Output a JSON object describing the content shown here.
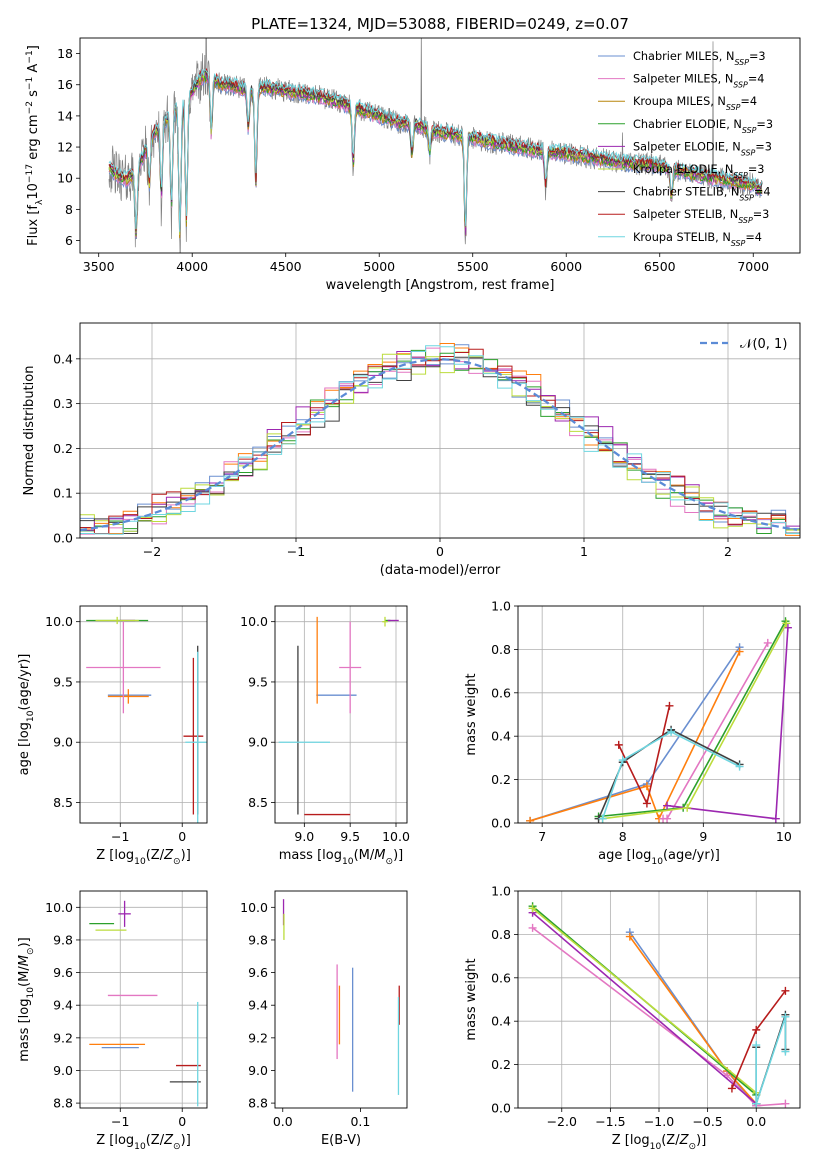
{
  "figure_title": "PLATE=1324, MJD=53088, FIBERID=0249, z=0.07",
  "chart_data": [
    {
      "id": "spectrum",
      "type": "line",
      "xlabel": "wavelength [Angstrom, rest frame]",
      "ylabel": "Flux [f_λ10^-17 erg cm^-2 s^-1 A^-1]",
      "xlim": [
        3400,
        7250
      ],
      "ylim": [
        5.2,
        19
      ],
      "xticks": [
        3500,
        4000,
        4500,
        5000,
        5500,
        6000,
        6500,
        7000
      ],
      "yticks": [
        6,
        8,
        10,
        12,
        14,
        16,
        18
      ],
      "grid": false,
      "legend_position": "top-right",
      "legend": [
        {
          "label": "Chabrier MILES, N_SSP=3",
          "color": "#6a8fd0"
        },
        {
          "label": "Salpeter MILES, N_SSP=4",
          "color": "#e377c2"
        },
        {
          "label": "Kroupa MILES, N_SSP=4",
          "color": "#b8860b"
        },
        {
          "label": "Chabrier ELODIE, N_SSP=3",
          "color": "#2ca02c"
        },
        {
          "label": "Salpeter ELODIE, N_SSP=3",
          "color": "#9c27b0"
        },
        {
          "label": "Kroupa ELODIE, N_SSP=3",
          "color": "#bcdc3c"
        },
        {
          "label": "Chabrier STELIB, N_SSP=4",
          "color": "#404040"
        },
        {
          "label": "Salpeter STELIB, N_SSP=3",
          "color": "#b71c1c"
        },
        {
          "label": "Kroupa STELIB, N_SSP=4",
          "color": "#6fd6e0"
        }
      ],
      "data_color": "#808080",
      "continuum": {
        "x": [
          3550,
          3600,
          3650,
          3700,
          3750,
          3800,
          3850,
          3900,
          3950,
          4000,
          4050,
          4100,
          4150,
          4200,
          4300,
          4400,
          4500,
          4600,
          4700,
          4800,
          4900,
          5000,
          5100,
          5200,
          5300,
          5400,
          5500,
          5600,
          5700,
          5800,
          5900,
          6000,
          6100,
          6200,
          6300,
          6400,
          6500,
          6600,
          6700,
          6800,
          6900,
          7000,
          7050
        ],
        "y": [
          10.8,
          10.2,
          9.9,
          10.4,
          11.8,
          13.0,
          13.6,
          14.2,
          14.8,
          15.6,
          16.5,
          16.6,
          16.0,
          16.0,
          15.6,
          15.8,
          15.6,
          15.4,
          15.2,
          14.8,
          14.4,
          14.0,
          13.6,
          13.4,
          13.0,
          12.8,
          12.6,
          12.3,
          12.1,
          11.9,
          11.7,
          11.6,
          11.4,
          11.2,
          11.0,
          10.9,
          10.8,
          10.5,
          10.2,
          10.0,
          9.8,
          9.6,
          9.3
        ]
      },
      "absorption_lines": [
        {
          "x": 3700,
          "depth": 4.5
        },
        {
          "x": 3770,
          "depth": 3.0
        },
        {
          "x": 3835,
          "depth": 5.0
        },
        {
          "x": 3889,
          "depth": 6.5
        },
        {
          "x": 3934,
          "depth": 9.0
        },
        {
          "x": 3969,
          "depth": 8.5
        },
        {
          "x": 4102,
          "depth": 4.0
        },
        {
          "x": 4300,
          "depth": 2.5
        },
        {
          "x": 4340,
          "depth": 6.5
        },
        {
          "x": 4861,
          "depth": 4.0
        },
        {
          "x": 5175,
          "depth": 2.0
        },
        {
          "x": 5270,
          "depth": 1.5
        },
        {
          "x": 5461,
          "depth": 7.0
        },
        {
          "x": 5890,
          "depth": 2.5
        },
        {
          "x": 6563,
          "depth": 2.0
        }
      ],
      "emission_spikes": [
        {
          "x": 4075,
          "height": 7.0
        },
        {
          "x": 5225,
          "height": 6.5
        },
        {
          "x": 6785,
          "height": 9.0
        },
        {
          "x": 6300,
          "height": 2.5
        }
      ]
    },
    {
      "id": "residuals",
      "type": "histogram",
      "xlabel": "(data-model)/error",
      "ylabel": "Normed distribution",
      "xlim": [
        -2.5,
        2.5
      ],
      "ylim": [
        0,
        0.48
      ],
      "xticks": [
        -2,
        -1,
        0,
        1,
        2
      ],
      "yticks": [
        0.0,
        0.1,
        0.2,
        0.3,
        0.4
      ],
      "grid": true,
      "legend_position": "top-right",
      "reference_curve": {
        "label": "𝒩(0, 1)",
        "color": "#5b8bd6",
        "style": "dashed",
        "mean": 0,
        "sigma": 1
      },
      "bin_width": 0.1,
      "series": [
        {
          "color": "#6a8fd0",
          "amplitude": 0.4,
          "sigma": 1.02,
          "phase": 0.0
        },
        {
          "color": "#ff7f0e",
          "amplitude": 0.41,
          "sigma": 1.0,
          "phase": 1.3
        },
        {
          "color": "#e377c2",
          "amplitude": 0.4,
          "sigma": 0.98,
          "phase": 2.1
        },
        {
          "color": "#2ca02c",
          "amplitude": 0.4,
          "sigma": 1.01,
          "phase": 3.4
        },
        {
          "color": "#9c27b0",
          "amplitude": 0.41,
          "sigma": 1.03,
          "phase": 4.2
        },
        {
          "color": "#bcdc3c",
          "amplitude": 0.4,
          "sigma": 0.97,
          "phase": 5.0
        },
        {
          "color": "#404040",
          "amplitude": 0.39,
          "sigma": 1.0,
          "phase": 5.9
        },
        {
          "color": "#b71c1c",
          "amplitude": 0.41,
          "sigma": 1.02,
          "phase": 6.7
        },
        {
          "color": "#6fd6e0",
          "amplitude": 0.4,
          "sigma": 0.99,
          "phase": 7.5
        }
      ]
    },
    {
      "id": "age_vs_Z",
      "type": "errorbar",
      "xlabel": "Z [log10(Z/Z⊙)]",
      "ylabel": "age  [log10(age/yr)]",
      "xlim": [
        -1.65,
        0.4
      ],
      "ylim": [
        8.33,
        10.13
      ],
      "xticks": [
        -1,
        0
      ],
      "yticks": [
        8.5,
        9.0,
        9.5,
        10.0
      ],
      "grid": true,
      "points": [
        {
          "color": "#6a8fd0",
          "x": -0.85,
          "y": 9.39,
          "xerr": 0.35,
          "yerr": 0.0
        },
        {
          "color": "#ff7f0e",
          "x": -0.87,
          "y": 9.38,
          "xerr": 0.33,
          "yerr": 0.06
        },
        {
          "color": "#e377c2",
          "x": -0.95,
          "y": 9.62,
          "xerr": 0.6,
          "yerr": 0.38
        },
        {
          "color": "#2ca02c",
          "x": -1.05,
          "y": 10.01,
          "xerr": 0.5,
          "yerr": 0.0
        },
        {
          "color": "#9c27b0",
          "x": -0.88,
          "y": 10.01,
          "xerr": 0.12,
          "yerr": 0.0
        },
        {
          "color": "#bcdc3c",
          "x": -1.05,
          "y": 10.01,
          "xerr": 0.35,
          "yerr": 0.03
        },
        {
          "color": "#404040",
          "x": 0.25,
          "y": 9.1,
          "xerr": 0.0,
          "yerr": 0.7
        },
        {
          "color": "#b71c1c",
          "x": 0.18,
          "y": 9.05,
          "xerr": 0.16,
          "yerr": 0.65
        },
        {
          "color": "#6fd6e0",
          "x": 0.25,
          "y": 9.0,
          "xerr": 0.2,
          "yerr": 0.75
        }
      ]
    },
    {
      "id": "age_vs_mass",
      "type": "errorbar",
      "xlabel": "mass [log10(M/M⊙)]",
      "ylabel": "",
      "xlim": [
        8.68,
        10.12
      ],
      "ylim": [
        8.33,
        10.13
      ],
      "xticks": [
        9.0,
        9.5,
        10.0
      ],
      "yticks": [
        8.5,
        9.0,
        9.5,
        10.0
      ],
      "grid": true,
      "points": [
        {
          "color": "#6a8fd0",
          "x": 9.35,
          "y": 9.39,
          "xerr": 0.22,
          "yerr": 0.0
        },
        {
          "color": "#ff7f0e",
          "x": 9.14,
          "y": 9.68,
          "xerr": 0.0,
          "yerr": 0.36
        },
        {
          "color": "#e377c2",
          "x": 9.5,
          "y": 9.62,
          "xerr": 0.12,
          "yerr": 0.38
        },
        {
          "color": "#2ca02c",
          "x": 9.91,
          "y": 10.01,
          "xerr": 0.03,
          "yerr": 0.0
        },
        {
          "color": "#9c27b0",
          "x": 9.97,
          "y": 10.01,
          "xerr": 0.06,
          "yerr": 0.0
        },
        {
          "color": "#bcdc3c",
          "x": 9.88,
          "y": 10.0,
          "xerr": 0.03,
          "yerr": 0.04
        },
        {
          "color": "#404040",
          "x": 8.93,
          "y": 9.1,
          "xerr": 0.0,
          "yerr": 0.7
        },
        {
          "color": "#b71c1c",
          "x": 9.25,
          "y": 8.4,
          "xerr": 0.25,
          "yerr": 0.0
        },
        {
          "color": "#6fd6e0",
          "x": 9.0,
          "y": 9.0,
          "xerr": 0.28,
          "yerr": 0.0
        }
      ]
    },
    {
      "id": "weight_vs_age",
      "type": "line",
      "xlabel": "age  [log10(age/yr)]",
      "ylabel": "mass weight",
      "xlim": [
        6.7,
        10.2
      ],
      "ylim": [
        0,
        1
      ],
      "xticks": [
        7,
        8,
        9,
        10
      ],
      "yticks": [
        0.0,
        0.2,
        0.4,
        0.6,
        0.8,
        1.0
      ],
      "grid": true,
      "series": [
        {
          "color": "#6a8fd0",
          "x": [
            6.85,
            8.3,
            9.45
          ],
          "y": [
            0.01,
            0.18,
            0.81
          ]
        },
        {
          "color": "#ff7f0e",
          "x": [
            6.85,
            8.3,
            8.45,
            9.45
          ],
          "y": [
            0.01,
            0.17,
            0.02,
            0.79
          ]
        },
        {
          "color": "#e377c2",
          "x": [
            8.5,
            8.55,
            9.8
          ],
          "y": [
            0.02,
            0.02,
            0.83
          ]
        },
        {
          "color": "#2ca02c",
          "x": [
            7.7,
            8.75,
            10.02
          ],
          "y": [
            0.03,
            0.07,
            0.93
          ]
        },
        {
          "color": "#9c27b0",
          "x": [
            8.55,
            9.9,
            10.05
          ],
          "y": [
            0.08,
            0.02,
            0.9
          ]
        },
        {
          "color": "#bcdc3c",
          "x": [
            7.75,
            8.8,
            10.03
          ],
          "y": [
            0.02,
            0.07,
            0.92
          ]
        },
        {
          "color": "#404040",
          "x": [
            7.7,
            8.0,
            8.6,
            9.45
          ],
          "y": [
            0.02,
            0.28,
            0.43,
            0.27
          ]
        },
        {
          "color": "#b71c1c",
          "x": [
            7.95,
            8.3,
            8.58
          ],
          "y": [
            0.36,
            0.09,
            0.54
          ]
        },
        {
          "color": "#6fd6e0",
          "x": [
            7.75,
            8.0,
            8.6,
            9.45
          ],
          "y": [
            0.02,
            0.29,
            0.42,
            0.26
          ]
        }
      ]
    },
    {
      "id": "mass_vs_Z",
      "type": "errorbar",
      "xlabel": "Z [log10(Z/Z⊙)]",
      "ylabel": "mass [log10(M/M⊙)]",
      "xlim": [
        -1.65,
        0.4
      ],
      "ylim": [
        8.77,
        10.1
      ],
      "xticks": [
        -1,
        0
      ],
      "yticks": [
        8.8,
        9.0,
        9.2,
        9.4,
        9.6,
        9.8,
        10.0
      ],
      "grid": true,
      "points": [
        {
          "color": "#6a8fd0",
          "x": -1.0,
          "y": 9.14,
          "xerr": 0.3,
          "yerr": 0.0
        },
        {
          "color": "#ff7f0e",
          "x": -1.05,
          "y": 9.16,
          "xerr": 0.45,
          "yerr": 0.0
        },
        {
          "color": "#e377c2",
          "x": -0.8,
          "y": 9.46,
          "xerr": 0.4,
          "yerr": 0.0
        },
        {
          "color": "#2ca02c",
          "x": -1.3,
          "y": 9.9,
          "xerr": 0.2,
          "yerr": 0.0
        },
        {
          "color": "#9c27b0",
          "x": -0.93,
          "y": 9.96,
          "xerr": 0.1,
          "yerr": 0.08
        },
        {
          "color": "#bcdc3c",
          "x": -1.15,
          "y": 9.86,
          "xerr": 0.25,
          "yerr": 0.0
        },
        {
          "color": "#404040",
          "x": 0.05,
          "y": 8.93,
          "xerr": 0.25,
          "yerr": 0.0
        },
        {
          "color": "#b71c1c",
          "x": 0.1,
          "y": 9.03,
          "xerr": 0.2,
          "yerr": 0.0
        },
        {
          "color": "#6fd6e0",
          "x": 0.25,
          "y": 9.1,
          "xerr": 0.0,
          "yerr": 0.32
        }
      ]
    },
    {
      "id": "mass_vs_EBV",
      "type": "errorbar",
      "xlabel": "E(B-V)",
      "ylabel": "",
      "xlim": [
        -0.01,
        0.16
      ],
      "ylim": [
        8.77,
        10.1
      ],
      "xticks": [
        0.0,
        0.1
      ],
      "yticks": [
        8.8,
        9.0,
        9.2,
        9.4,
        9.6,
        9.8,
        10.0
      ],
      "grid": false,
      "points": [
        {
          "color": "#e377c2",
          "x": 0.07,
          "y": 9.36,
          "xerr": 0.0,
          "yerr": 0.29
        },
        {
          "color": "#ff7f0e",
          "x": 0.073,
          "y": 9.34,
          "xerr": 0.0,
          "yerr": 0.18
        },
        {
          "color": "#6a8fd0",
          "x": 0.09,
          "y": 9.25,
          "xerr": 0.0,
          "yerr": 0.38
        },
        {
          "color": "#9c27b0",
          "x": 0.001,
          "y": 9.97,
          "xerr": 0.0,
          "yerr": 0.08
        },
        {
          "color": "#bcdc3c",
          "x": 0.0015,
          "y": 9.88,
          "xerr": 0.0,
          "yerr": 0.08
        },
        {
          "color": "#b71c1c",
          "x": 0.15,
          "y": 9.4,
          "xerr": 0.0,
          "yerr": 0.12
        },
        {
          "color": "#6fd6e0",
          "x": 0.149,
          "y": 9.15,
          "xerr": 0.0,
          "yerr": 0.3
        }
      ]
    },
    {
      "id": "weight_vs_Z",
      "type": "line",
      "xlabel": "Z [log10(Z/Z⊙)]",
      "ylabel": "mass weight",
      "xlim": [
        -2.45,
        0.45
      ],
      "ylim": [
        0,
        1
      ],
      "xticks": [
        -2.0,
        -1.5,
        -1.0,
        -0.5,
        0.0,
        0.5
      ],
      "yticks": [
        0.0,
        0.2,
        0.4,
        0.6,
        0.8,
        1.0
      ],
      "grid": true,
      "series": [
        {
          "color": "#6a8fd0",
          "x": [
            -1.3,
            -0.3,
            0.0
          ],
          "y": [
            0.81,
            0.17,
            0.01
          ]
        },
        {
          "color": "#ff7f0e",
          "x": [
            -1.3,
            -0.3,
            0.0
          ],
          "y": [
            0.79,
            0.17,
            0.02
          ]
        },
        {
          "color": "#e377c2",
          "x": [
            -2.3,
            -0.3,
            0.0,
            0.3
          ],
          "y": [
            0.83,
            0.15,
            0.01,
            0.02
          ]
        },
        {
          "color": "#2ca02c",
          "x": [
            -2.3,
            0.0
          ],
          "y": [
            0.93,
            0.06
          ]
        },
        {
          "color": "#9c27b0",
          "x": [
            -2.3,
            0.0
          ],
          "y": [
            0.9,
            0.02
          ]
        },
        {
          "color": "#bcdc3c",
          "x": [
            -2.3,
            0.0
          ],
          "y": [
            0.92,
            0.07
          ]
        },
        {
          "color": "#404040",
          "x": [
            0.0,
            0.0,
            0.3,
            0.3
          ],
          "y": [
            0.28,
            0.02,
            0.43,
            0.27
          ]
        },
        {
          "color": "#b71c1c",
          "x": [
            -0.25,
            0.0,
            0.3
          ],
          "y": [
            0.09,
            0.36,
            0.54
          ]
        },
        {
          "color": "#6fd6e0",
          "x": [
            0.0,
            0.0,
            0.3,
            0.3
          ],
          "y": [
            0.29,
            0.02,
            0.42,
            0.26
          ]
        }
      ]
    }
  ]
}
